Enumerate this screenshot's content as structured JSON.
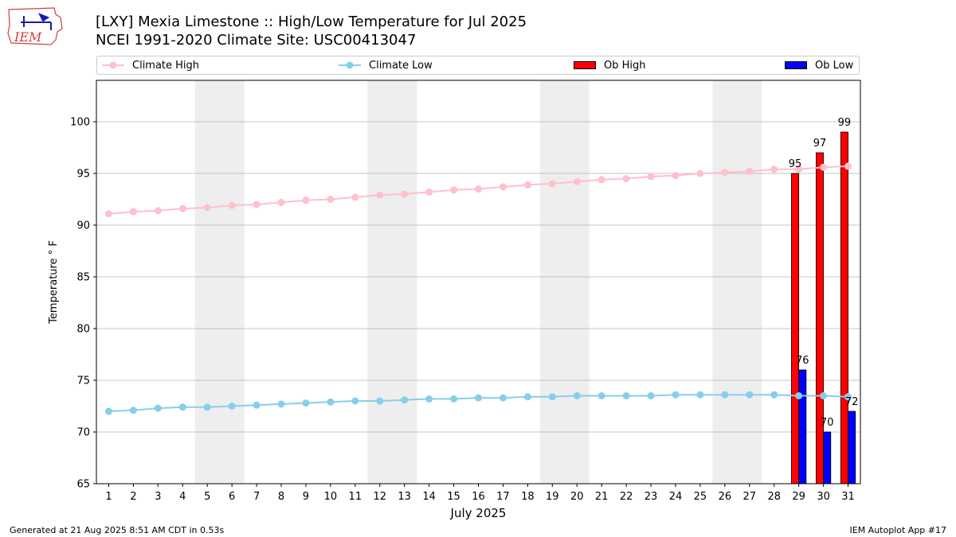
{
  "header": {
    "title_line1": "[LXY] Mexia Limestone :: High/Low Temperature for Jul 2025",
    "title_line2": "NCEI 1991-2020 Climate Site: USC00413047"
  },
  "logo": {
    "text": "IEM"
  },
  "footer": {
    "left": "Generated at 21 Aug 2025 8:51 AM CDT in 0.53s",
    "right": "IEM Autoplot App #17"
  },
  "colors": {
    "climate_high": "#ffc0cb",
    "climate_low": "#87ceeb",
    "ob_high": "#ff0000",
    "ob_low": "#0000ff",
    "weekend_shade": "#eeeeee",
    "grid": "#b0b0b0"
  },
  "chart_data": {
    "type": "bar",
    "title": "[LXY] Mexia Limestone :: High/Low Temperature for Jul 2025",
    "subtitle": "NCEI 1991-2020 Climate Site: USC00413047",
    "xlabel": "July 2025",
    "ylabel": "Temperature ° F",
    "ylim": [
      65,
      104
    ],
    "yticks": [
      65,
      70,
      75,
      80,
      85,
      90,
      95,
      100
    ],
    "xlim": [
      0.5,
      31.5
    ],
    "x": [
      1,
      2,
      3,
      4,
      5,
      6,
      7,
      8,
      9,
      10,
      11,
      12,
      13,
      14,
      15,
      16,
      17,
      18,
      19,
      20,
      21,
      22,
      23,
      24,
      25,
      26,
      27,
      28,
      29,
      30,
      31
    ],
    "grid": "horizontal",
    "legend_position": "top",
    "shaded_weekends": [
      [
        5,
        6
      ],
      [
        12,
        13
      ],
      [
        19,
        20
      ],
      [
        26,
        27
      ]
    ],
    "series": [
      {
        "name": "Climate High",
        "kind": "line",
        "values": [
          91.1,
          91.3,
          91.4,
          91.6,
          91.7,
          91.9,
          92.0,
          92.2,
          92.4,
          92.5,
          92.7,
          92.9,
          93.0,
          93.2,
          93.4,
          93.5,
          93.7,
          93.9,
          94.0,
          94.2,
          94.4,
          94.5,
          94.7,
          94.8,
          95.0,
          95.1,
          95.2,
          95.4,
          95.4,
          95.6,
          95.7
        ]
      },
      {
        "name": "Climate Low",
        "kind": "line",
        "values": [
          72.0,
          72.1,
          72.3,
          72.4,
          72.4,
          72.5,
          72.6,
          72.7,
          72.8,
          72.9,
          73.0,
          73.0,
          73.1,
          73.2,
          73.2,
          73.3,
          73.3,
          73.4,
          73.4,
          73.5,
          73.5,
          73.5,
          73.5,
          73.6,
          73.6,
          73.6,
          73.6,
          73.6,
          73.5,
          73.5,
          73.4
        ]
      },
      {
        "name": "Ob High",
        "kind": "bar",
        "x": [
          29,
          30,
          31
        ],
        "values": [
          95,
          97,
          99
        ]
      },
      {
        "name": "Ob Low",
        "kind": "bar",
        "x": [
          29,
          30,
          31
        ],
        "values": [
          76,
          70,
          72
        ]
      }
    ]
  }
}
